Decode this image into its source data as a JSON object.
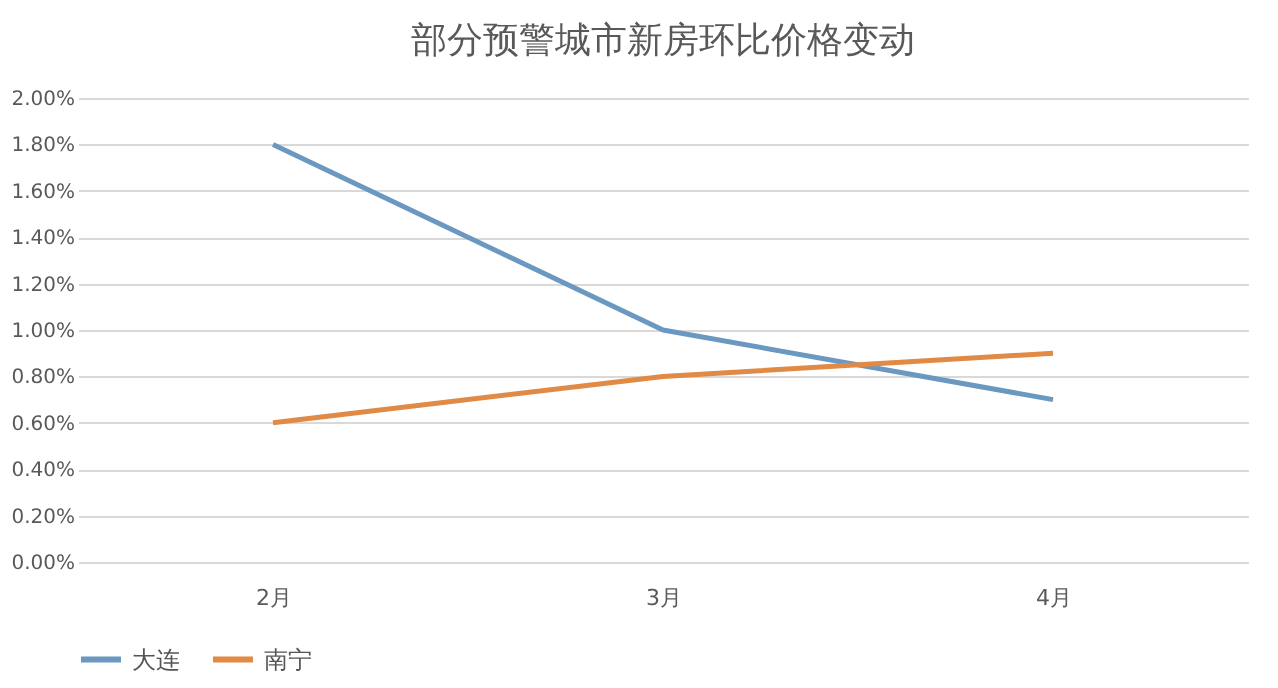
{
  "chart_data": {
    "type": "line",
    "title": "部分预警城市新房环比价格变动",
    "categories": [
      "2月",
      "3月",
      "4月"
    ],
    "series": [
      {
        "name": "大连",
        "color": "#6a98c0",
        "values": [
          1.8,
          1.0,
          0.7
        ]
      },
      {
        "name": "南宁",
        "color": "#e08a45",
        "values": [
          0.6,
          0.8,
          0.9
        ]
      }
    ],
    "ylim": [
      0,
      2
    ],
    "yticks": [
      {
        "value": 0,
        "label": "0.00%"
      },
      {
        "value": 0.2,
        "label": "0.20%"
      },
      {
        "value": 0.4,
        "label": "0.40%"
      },
      {
        "value": 0.6,
        "label": "0.60%"
      },
      {
        "value": 0.8,
        "label": "0.80%"
      },
      {
        "value": 1.0,
        "label": "1.00%"
      },
      {
        "value": 1.2,
        "label": "1.20%"
      },
      {
        "value": 1.4,
        "label": "1.40%"
      },
      {
        "value": 1.6,
        "label": "1.60%"
      },
      {
        "value": 1.8,
        "label": "1.80%"
      },
      {
        "value": 2.0,
        "label": "2.00%"
      }
    ],
    "grid": "y",
    "legend": "bottom",
    "marker": "none",
    "line_style": "solid"
  }
}
